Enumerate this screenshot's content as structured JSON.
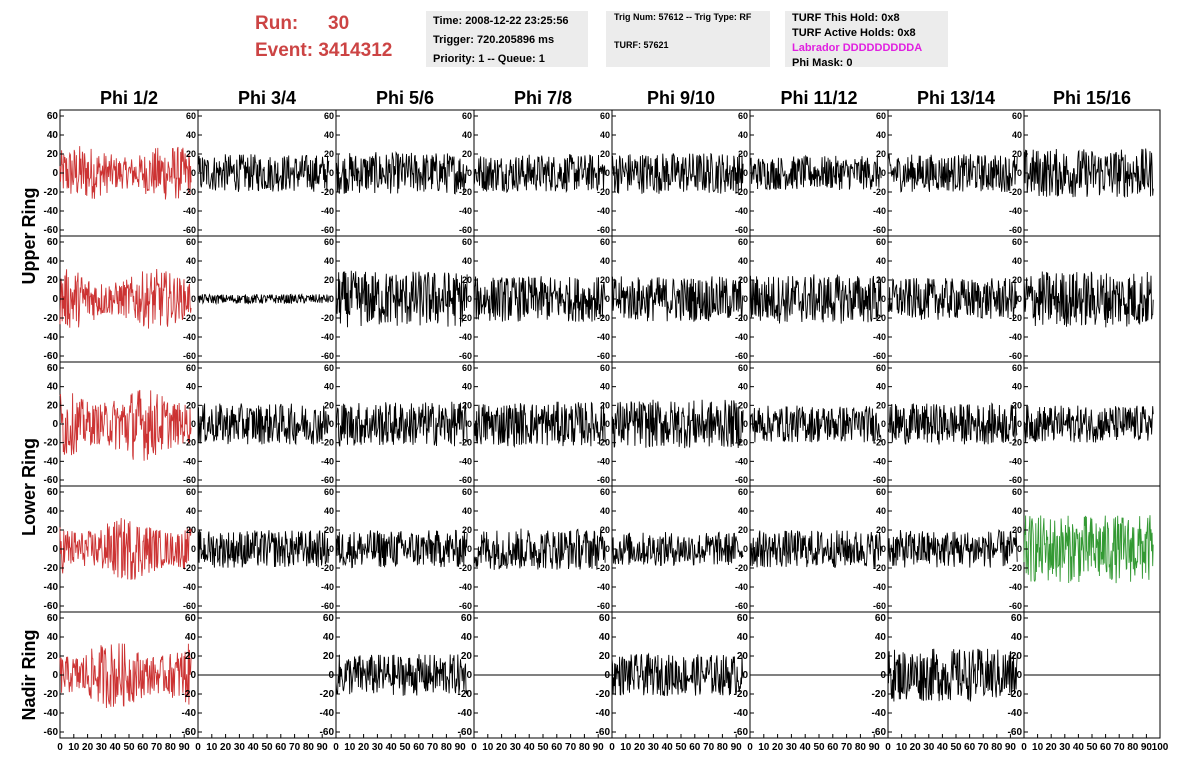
{
  "header": {
    "run_label": "Run:",
    "run_value": "30",
    "event_label": "Event:",
    "event_value": "3414312"
  },
  "info_box_1": {
    "time": "Time: 2008-12-22 23:25:56",
    "trigger": "Trigger: 720.205896 ms",
    "priority": "Priority: 1 -- Queue: 1"
  },
  "info_box_2": {
    "trig": "Trig Num: 57612 -- Trig Type: RF",
    "turf": "TURF: 57621"
  },
  "info_box_3": {
    "hold": "TURF This Hold: 0x8",
    "active": "TURF Active Holds: 0x8",
    "labrador": "Labrador DDDDDDDDDA",
    "phi_mask": "Phi Mask: 0"
  },
  "columns": [
    "Phi 1/2",
    "Phi 3/4",
    "Phi 5/6",
    "Phi 7/8",
    "Phi 9/10",
    "Phi 11/12",
    "Phi 13/14",
    "Phi 15/16"
  ],
  "row_groups": [
    {
      "label": "Upper Ring"
    },
    {
      "label": "Lower Ring"
    },
    {
      "label": "Nadir Ring"
    }
  ],
  "y_axis_ticks": [
    "60",
    "40",
    "20",
    "0",
    "-20",
    "-40",
    "-60"
  ],
  "x_axis_ticks": [
    "0",
    "10",
    "20",
    "30",
    "40",
    "50",
    "60",
    "70",
    "80",
    "90",
    "100"
  ],
  "colors": {
    "highlight_red": "#cc3333",
    "highlight_green": "#339933",
    "trace_black": "#000000",
    "run_text": "#cc4444",
    "labrador_text": "#e020e0"
  },
  "chart_data": {
    "type": "line",
    "description_rows": 5,
    "description_cols": 8,
    "ylim": [
      -60,
      60
    ],
    "xlim": [
      0,
      100
    ],
    "traces": [
      {
        "row": 0,
        "col": 0,
        "color": "red",
        "amplitude": 30
      },
      {
        "row": 0,
        "col": 1,
        "color": "black",
        "amplitude": 20
      },
      {
        "row": 0,
        "col": 2,
        "color": "black",
        "amplitude": 22
      },
      {
        "row": 0,
        "col": 3,
        "color": "black",
        "amplitude": 20
      },
      {
        "row": 0,
        "col": 4,
        "color": "black",
        "amplitude": 22
      },
      {
        "row": 0,
        "col": 5,
        "color": "black",
        "amplitude": 18
      },
      {
        "row": 0,
        "col": 6,
        "color": "black",
        "amplitude": 20
      },
      {
        "row": 0,
        "col": 7,
        "color": "black",
        "amplitude": 26
      },
      {
        "row": 1,
        "col": 0,
        "color": "red",
        "amplitude": 32
      },
      {
        "row": 1,
        "col": 1,
        "color": "black",
        "amplitude": 5
      },
      {
        "row": 1,
        "col": 2,
        "color": "black",
        "amplitude": 30
      },
      {
        "row": 1,
        "col": 3,
        "color": "black",
        "amplitude": 24
      },
      {
        "row": 1,
        "col": 4,
        "color": "black",
        "amplitude": 24
      },
      {
        "row": 1,
        "col": 5,
        "color": "black",
        "amplitude": 26
      },
      {
        "row": 1,
        "col": 6,
        "color": "black",
        "amplitude": 22
      },
      {
        "row": 1,
        "col": 7,
        "color": "black",
        "amplitude": 30
      },
      {
        "row": 2,
        "col": 0,
        "color": "red",
        "amplitude": 40
      },
      {
        "row": 2,
        "col": 1,
        "color": "black",
        "amplitude": 22
      },
      {
        "row": 2,
        "col": 2,
        "color": "black",
        "amplitude": 24
      },
      {
        "row": 2,
        "col": 3,
        "color": "black",
        "amplitude": 24
      },
      {
        "row": 2,
        "col": 4,
        "color": "black",
        "amplitude": 26
      },
      {
        "row": 2,
        "col": 5,
        "color": "black",
        "amplitude": 20
      },
      {
        "row": 2,
        "col": 6,
        "color": "black",
        "amplitude": 22
      },
      {
        "row": 2,
        "col": 7,
        "color": "black",
        "amplitude": 20
      },
      {
        "row": 3,
        "col": 0,
        "color": "red",
        "amplitude": 34
      },
      {
        "row": 3,
        "col": 1,
        "color": "black",
        "amplitude": 20
      },
      {
        "row": 3,
        "col": 2,
        "color": "black",
        "amplitude": 20
      },
      {
        "row": 3,
        "col": 3,
        "color": "black",
        "amplitude": 22
      },
      {
        "row": 3,
        "col": 4,
        "color": "black",
        "amplitude": 18
      },
      {
        "row": 3,
        "col": 5,
        "color": "black",
        "amplitude": 20
      },
      {
        "row": 3,
        "col": 6,
        "color": "black",
        "amplitude": 20
      },
      {
        "row": 3,
        "col": 7,
        "color": "green",
        "amplitude": 36
      },
      {
        "row": 4,
        "col": 0,
        "color": "red",
        "amplitude": 36
      },
      {
        "row": 4,
        "col": 1,
        "color": "black",
        "amplitude": 0
      },
      {
        "row": 4,
        "col": 2,
        "color": "black",
        "amplitude": 22
      },
      {
        "row": 4,
        "col": 3,
        "color": "black",
        "amplitude": 0
      },
      {
        "row": 4,
        "col": 4,
        "color": "black",
        "amplitude": 22
      },
      {
        "row": 4,
        "col": 5,
        "color": "black",
        "amplitude": 0
      },
      {
        "row": 4,
        "col": 6,
        "color": "black",
        "amplitude": 28
      },
      {
        "row": 4,
        "col": 7,
        "color": "black",
        "amplitude": 0
      }
    ]
  }
}
